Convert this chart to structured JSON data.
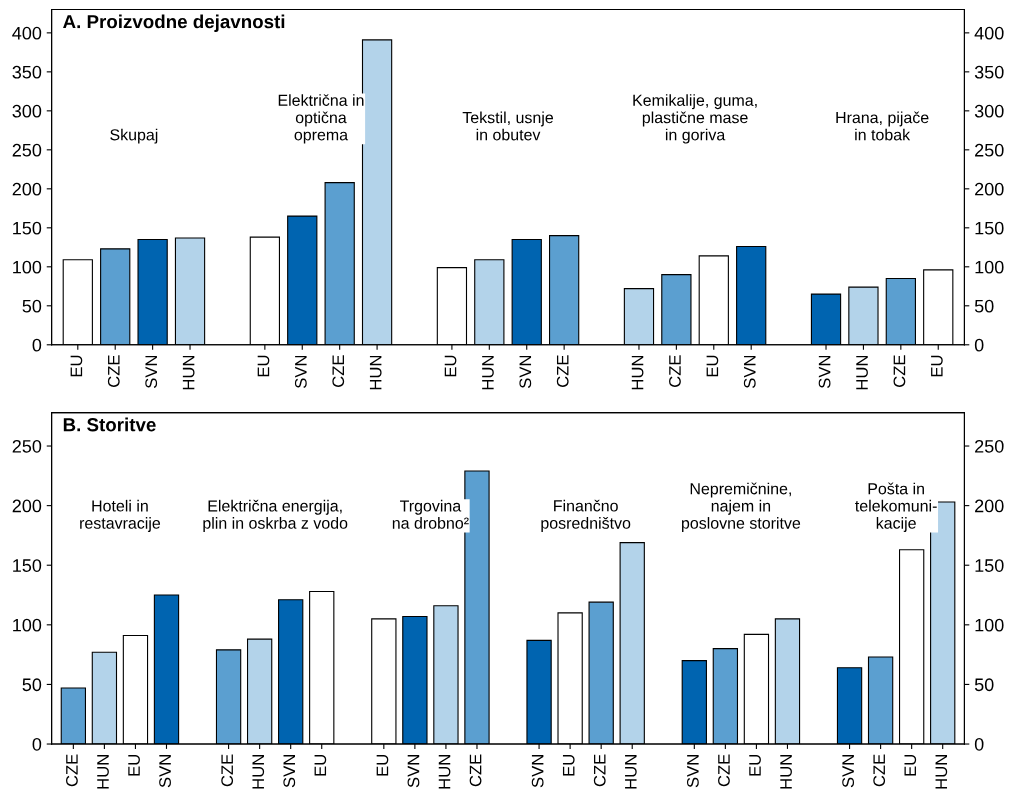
{
  "chart_data": [
    {
      "type": "bar",
      "title": "A. Proizvodne dejavnosti",
      "categories": [
        "EU",
        "CZE",
        "SVN",
        "HUN",
        null,
        "EU",
        "SVN",
        "CZE",
        "HUN",
        null,
        "EU",
        "HUN",
        "SVN",
        "CZE",
        null,
        "HUN",
        "CZE",
        "EU",
        "SVN",
        null,
        "SVN",
        "HUN",
        "CZE",
        "EU"
      ],
      "values": [
        109,
        123,
        135,
        137,
        null,
        138,
        165,
        208,
        391,
        null,
        99,
        109,
        135,
        140,
        null,
        72,
        90,
        114,
        126,
        null,
        65,
        74,
        85,
        96
      ],
      "colors": [
        "#ffffff",
        "#5b9fd0",
        "#0064b0",
        "#b3d3ea",
        null,
        "#ffffff",
        "#0064b0",
        "#5b9fd0",
        "#b3d3ea",
        null,
        "#ffffff",
        "#b3d3ea",
        "#0064b0",
        "#5b9fd0",
        null,
        "#b3d3ea",
        "#5b9fd0",
        "#ffffff",
        "#0064b0",
        null,
        "#0064b0",
        "#b3d3ea",
        "#5b9fd0",
        "#ffffff"
      ],
      "annotations": [
        "Skupaj",
        "Električna in\noptična\noprema",
        "Tekstil, usnje\nin obutev",
        "Kemikalije, guma,\nplastične mase\nin goriva",
        "Hrana, pijače\nin tobak"
      ],
      "ylim": [
        0,
        430
      ],
      "yticks": [
        0,
        50,
        100,
        150,
        200,
        250,
        300,
        350,
        400
      ],
      "y2lim": [
        0,
        430
      ],
      "y2ticks": [
        0,
        50,
        100,
        150,
        200,
        250,
        300,
        350,
        400
      ],
      "grid": false
    },
    {
      "type": "bar",
      "title": "B. Storitve",
      "categories": [
        "CZE",
        "HUN",
        "EU",
        "SVN",
        null,
        "CZE",
        "HUN",
        "SVN",
        "EU",
        null,
        "EU",
        "SVN",
        "HUN",
        "CZE",
        null,
        "SVN",
        "EU",
        "CZE",
        "HUN",
        null,
        "SVN",
        "CZE",
        "EU",
        "HUN",
        null,
        "SVN",
        "CZE",
        "EU",
        "HUN"
      ],
      "values": [
        47,
        77,
        91,
        125,
        null,
        79,
        88,
        121,
        128,
        null,
        105,
        107,
        116,
        229,
        null,
        87,
        110,
        119,
        169,
        null,
        70,
        80,
        92,
        105,
        null,
        64,
        73,
        163,
        203
      ],
      "colors": [
        "#5b9fd0",
        "#b3d3ea",
        "#ffffff",
        "#0064b0",
        null,
        "#5b9fd0",
        "#b3d3ea",
        "#0064b0",
        "#ffffff",
        null,
        "#ffffff",
        "#0064b0",
        "#b3d3ea",
        "#5b9fd0",
        null,
        "#0064b0",
        "#ffffff",
        "#5b9fd0",
        "#b3d3ea",
        null,
        "#0064b0",
        "#5b9fd0",
        "#ffffff",
        "#b3d3ea",
        null,
        "#0064b0",
        "#5b9fd0",
        "#ffffff",
        "#b3d3ea"
      ],
      "annotations": [
        "Hoteli in\nrestavracije",
        "Električna energija,\nplin in oskrba z vodo",
        "Trgovina\nna drobno²",
        "Finančno\nposredništvo",
        "Nepremičnine,\nnajem in\nposlovne storitve",
        "Pošta in\ntelekomuni-\nkacije"
      ],
      "ylim": [
        0,
        278
      ],
      "yticks": [
        0,
        50,
        100,
        150,
        200,
        250
      ],
      "y2lim": [
        0,
        278
      ],
      "y2ticks": [
        0,
        50,
        100,
        150,
        200,
        250
      ],
      "grid": false
    }
  ]
}
